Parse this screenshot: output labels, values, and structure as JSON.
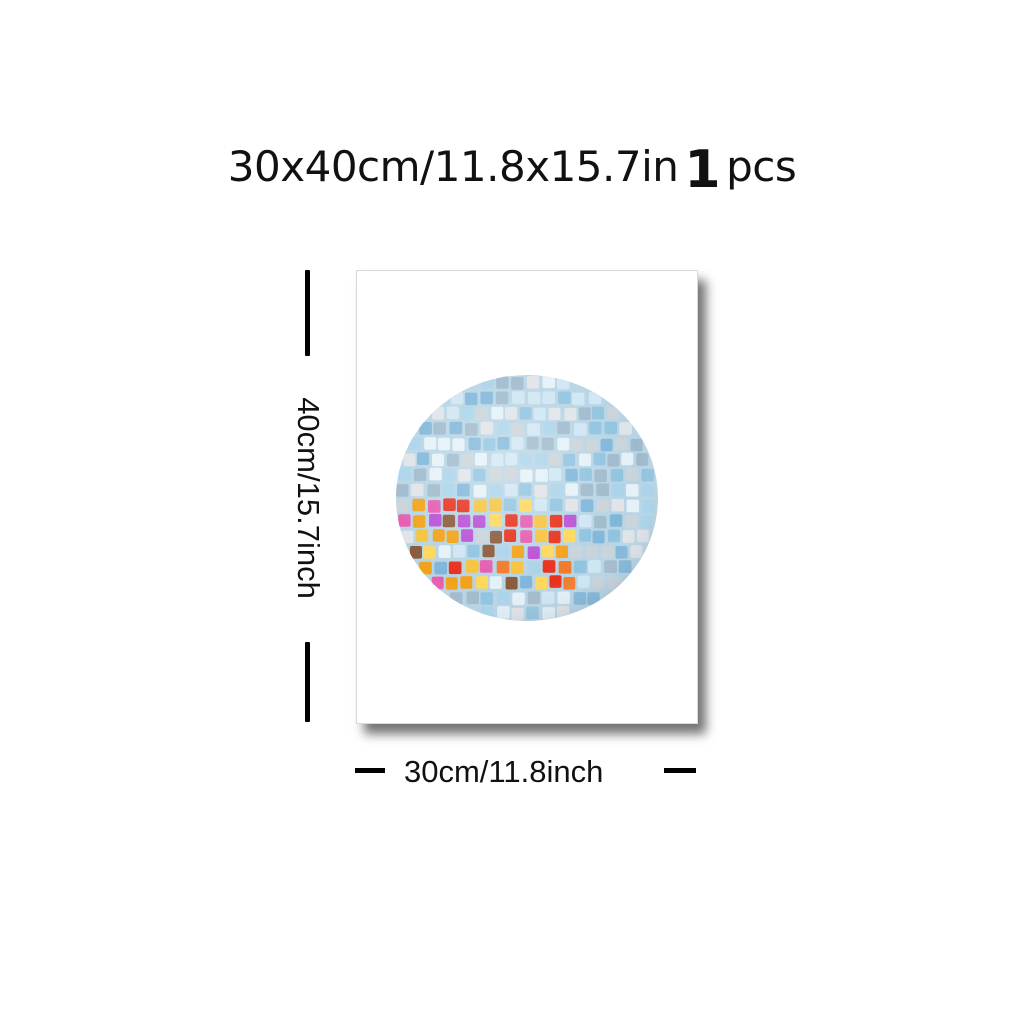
{
  "headline": {
    "size_text": "30x40cm/11.8x15.7in",
    "quantity": "1",
    "unit": "pcs"
  },
  "dimensions": {
    "height_label": "40cm/15.7inch",
    "width_label": "30cm/11.8inch"
  },
  "poster": {
    "subject": "disco-ball-icon",
    "colors": {
      "frame": "#ffffff",
      "ball_blue": "#a9d3ea",
      "ball_silver": "#c9d3da",
      "ball_orange": "#f2a21a",
      "ball_red": "#e8301c",
      "ball_purple": "#b94fd6",
      "ball_brown": "#8a5a3a"
    }
  }
}
